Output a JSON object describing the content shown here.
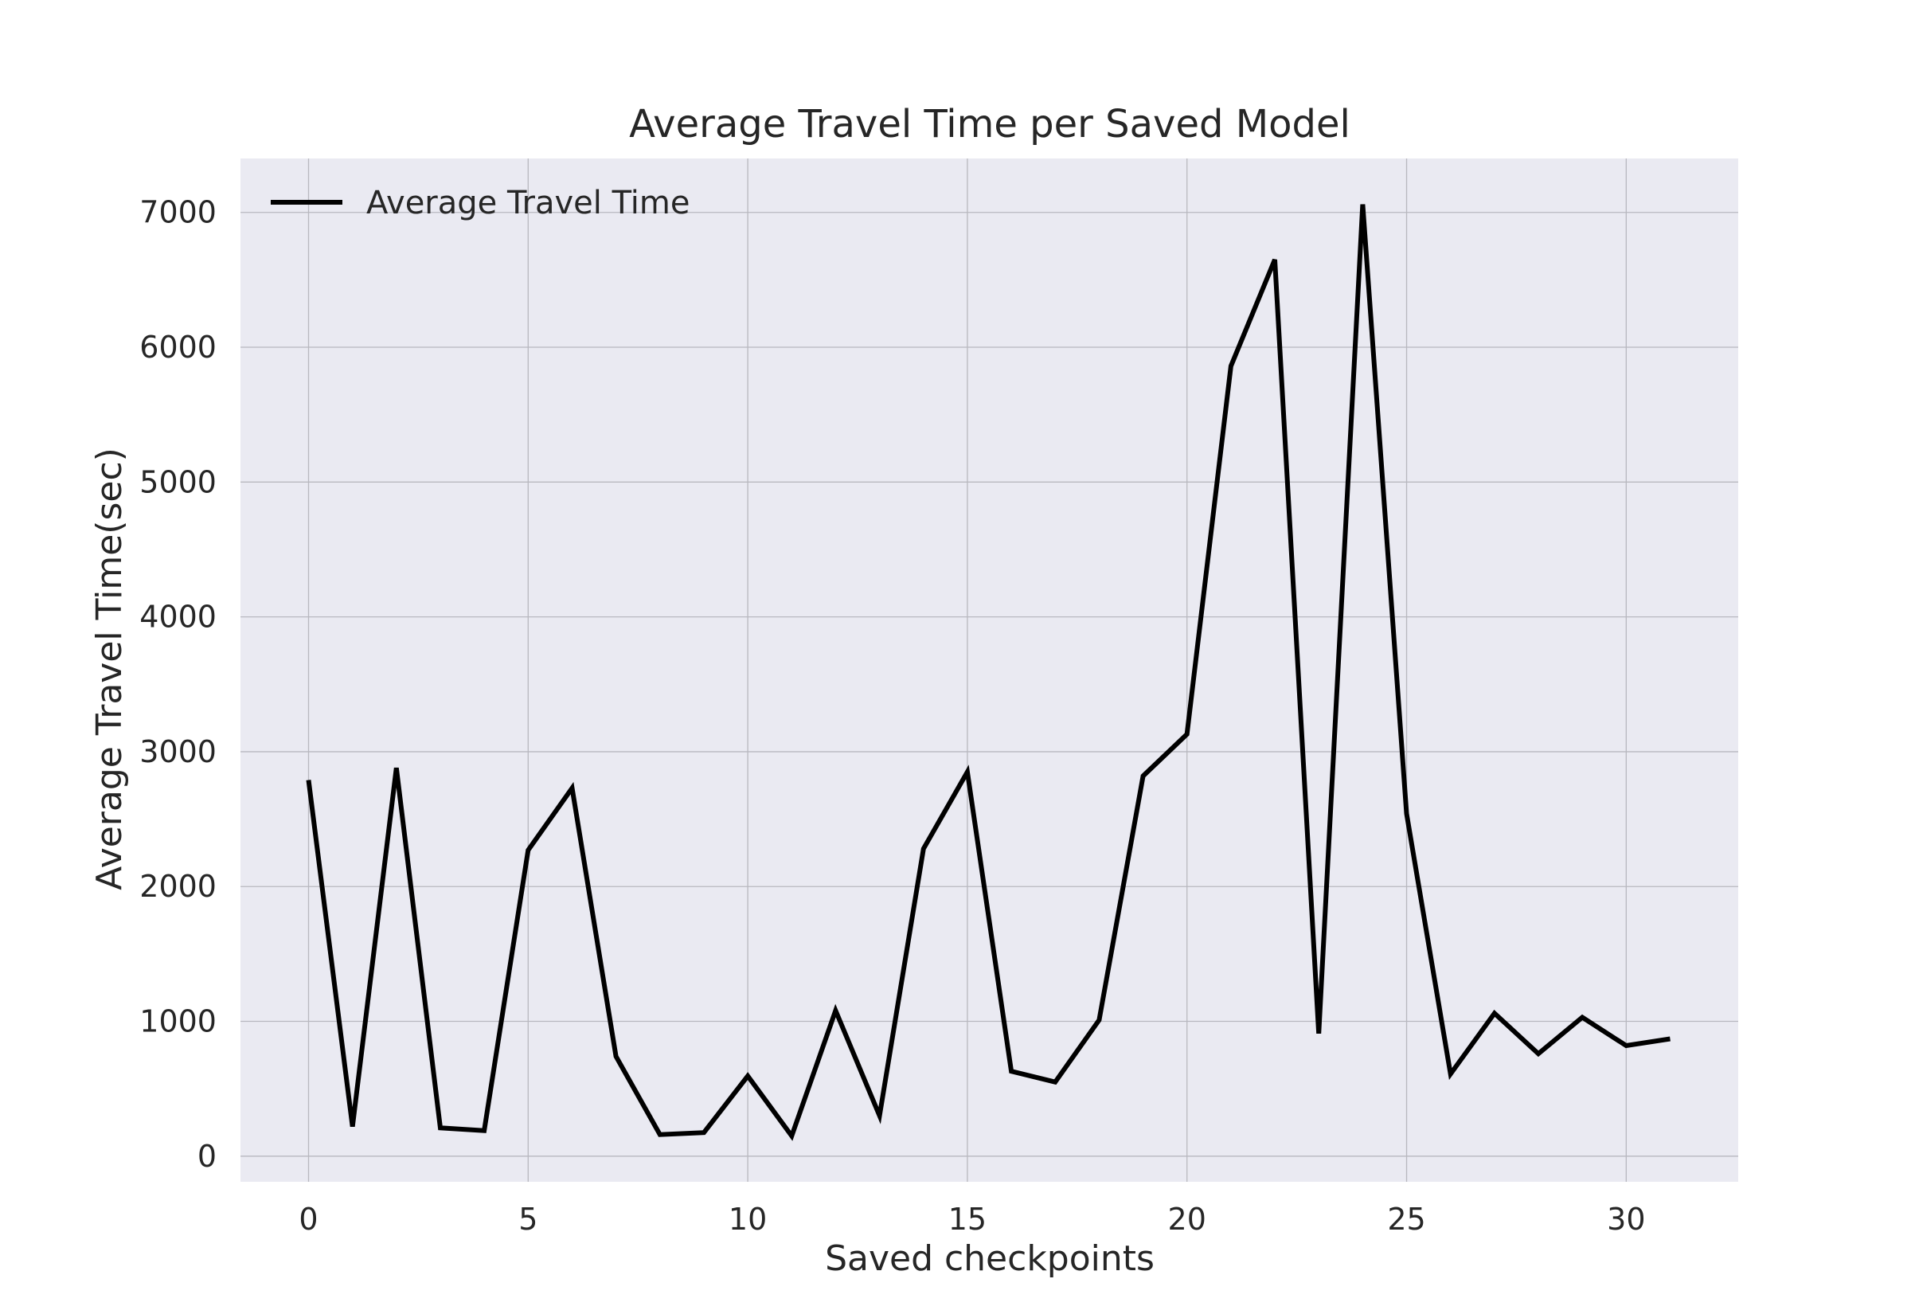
{
  "chart_data": {
    "type": "line",
    "title": "Average Travel Time per Saved Model",
    "xlabel": "Saved checkpoints",
    "ylabel": "Average Travel Time(sec)",
    "xlim": [
      -1.55,
      32.55
    ],
    "ylim": [
      -190,
      7400
    ],
    "xticks": [
      0,
      5,
      10,
      15,
      20,
      25,
      30
    ],
    "yticks": [
      0,
      1000,
      2000,
      3000,
      4000,
      5000,
      6000,
      7000
    ],
    "grid": true,
    "legend_position": "top-left",
    "colors": {
      "plot_background": "#eaeaf2",
      "grid": "#b8b8bf",
      "line": "#000000"
    },
    "series": [
      {
        "name": "Average Travel Time",
        "x": [
          0,
          1,
          2,
          3,
          4,
          5,
          6,
          7,
          8,
          9,
          10,
          11,
          12,
          13,
          14,
          15,
          16,
          17,
          18,
          19,
          20,
          21,
          22,
          23,
          24,
          25,
          26,
          27,
          28,
          29,
          30,
          31
        ],
        "values": [
          2790,
          220,
          2880,
          210,
          190,
          2270,
          2730,
          740,
          160,
          175,
          595,
          150,
          1080,
          300,
          2280,
          2850,
          630,
          550,
          1010,
          2820,
          3130,
          5860,
          6650,
          910,
          7060,
          2540,
          610,
          1060,
          760,
          1030,
          820,
          870
        ]
      }
    ]
  }
}
